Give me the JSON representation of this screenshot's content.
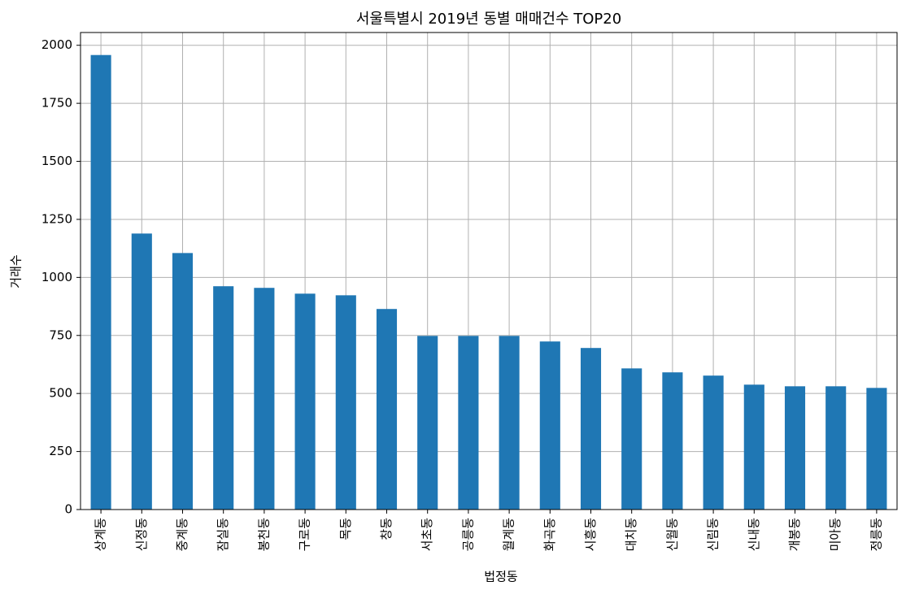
{
  "chart_data": {
    "type": "bar",
    "title": "서울특별시 2019년 동별 매매건수 TOP20",
    "x_label": "법정동",
    "y_label": "거래수",
    "categories": [
      "상계동",
      "신정동",
      "중계동",
      "잠실동",
      "봉천동",
      "구로동",
      "목동",
      "창동",
      "서초동",
      "공릉동",
      "월계동",
      "화곡동",
      "시흥동",
      "대치동",
      "신월동",
      "신림동",
      "신내동",
      "개봉동",
      "미아동",
      "정릉동"
    ],
    "values": [
      1958,
      1189,
      1105,
      962,
      955,
      930,
      923,
      864,
      748,
      748,
      748,
      724,
      696,
      608,
      591,
      577,
      538,
      531,
      531,
      524
    ],
    "color": "#1f77b4",
    "ylim": [
      0,
      2055
    ],
    "yticks": [
      0,
      250,
      500,
      750,
      1000,
      1250,
      1500,
      1750,
      2000
    ],
    "grid": true
  }
}
